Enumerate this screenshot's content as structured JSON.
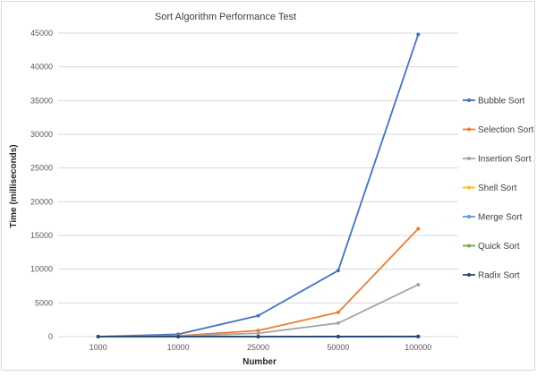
{
  "chart_data": {
    "type": "line",
    "title": "Sort Algorithm Performance Test",
    "xlabel": "Number",
    "ylabel": "Time (milliseconds)",
    "categories": [
      "1000",
      "10000",
      "25000",
      "50000",
      "100000"
    ],
    "ylim": [
      0,
      45000
    ],
    "yticks": [
      "0",
      "5000",
      "10000",
      "15000",
      "20000",
      "25000",
      "30000",
      "35000",
      "40000",
      "45000"
    ],
    "grid": "horizontal",
    "legend_position": "right",
    "series": [
      {
        "name": "Bubble Sort",
        "color": "#4472c4",
        "values": [
          0,
          350,
          3100,
          9800,
          44800
        ]
      },
      {
        "name": "Selection Sort",
        "color": "#ed7d31",
        "values": [
          0,
          120,
          900,
          3600,
          16000
        ]
      },
      {
        "name": "Insertion Sort",
        "color": "#a5a5a5",
        "values": [
          0,
          80,
          500,
          2000,
          7700
        ]
      },
      {
        "name": "Shell Sort",
        "color": "#ffc000",
        "values": [
          0,
          2,
          5,
          10,
          20
        ]
      },
      {
        "name": "Merge Sort",
        "color": "#5b9bd5",
        "values": [
          0,
          2,
          5,
          10,
          25
        ]
      },
      {
        "name": "Quick Sort",
        "color": "#70ad47",
        "values": [
          0,
          1,
          3,
          6,
          12
        ]
      },
      {
        "name": "Radix Sort",
        "color": "#264478",
        "values": [
          0,
          1,
          3,
          6,
          12
        ]
      }
    ]
  }
}
